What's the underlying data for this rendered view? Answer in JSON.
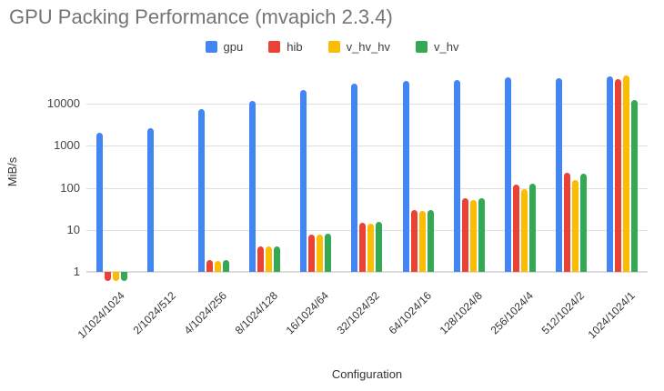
{
  "title": "GPU Packing Performance (mvapich 2.3.4)",
  "chart_data": {
    "type": "bar",
    "title": "GPU Packing Performance (mvapich 2.3.4)",
    "xlabel": "Configuration",
    "ylabel": "MiB/s",
    "y_scale": "log",
    "y_ticks": [
      1,
      10,
      100,
      1000,
      10000
    ],
    "ylim": [
      1,
      70000
    ],
    "grid": true,
    "legend_position": "top",
    "categories": [
      "1/1024/1024",
      "2/1024/512",
      "4/1024/256",
      "8/1024/128",
      "16/1024/64",
      "32/1024/32",
      "64/1024/16",
      "128/1024/8",
      "256/1024/4",
      "512/1024/2",
      "1024/1024/1"
    ],
    "series": [
      {
        "name": "gpu",
        "color": "#4285F4",
        "values": [
          2100,
          2600,
          7500,
          11500,
          21000,
          30000,
          35000,
          37000,
          42000,
          40000,
          46000
        ]
      },
      {
        "name": "hib",
        "color": "#EA4335",
        "values": [
          0.6,
          null,
          1.9,
          4.0,
          7.8,
          15.0,
          29.0,
          58.0,
          120.0,
          230.0,
          38000
        ]
      },
      {
        "name": "v_hv_hv",
        "color": "#FBBC04",
        "values": [
          0.6,
          null,
          1.8,
          4.0,
          7.8,
          14.0,
          28.0,
          51.0,
          95.0,
          155.0,
          48000
        ]
      },
      {
        "name": "v_hv",
        "color": "#34A853",
        "values": [
          0.6,
          null,
          1.9,
          4.0,
          8.2,
          15.5,
          30.0,
          57.0,
          123.0,
          215.0,
          12400
        ]
      }
    ]
  },
  "style_colors": {
    "title_text": "#757575",
    "tick_text": "#444444",
    "gridline": "#e0e0e0"
  }
}
